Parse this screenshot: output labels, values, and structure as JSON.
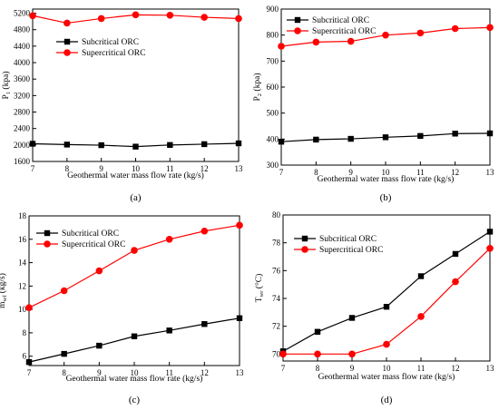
{
  "chart_data": [
    {
      "type": "line",
      "panel_label": "(a)",
      "xlabel": "Geothermal water mass flow rate (kg/s)",
      "ylabel": {
        "main": "P",
        "sub": "1",
        "unit": "(kpa)"
      },
      "x": [
        7,
        8,
        9,
        10,
        11,
        12,
        13
      ],
      "xlim": [
        7,
        13
      ],
      "ylim": [
        1600,
        5300
      ],
      "yticks": [
        1600,
        2000,
        2400,
        2800,
        3200,
        3600,
        4000,
        4400,
        4800,
        5200
      ],
      "legend_position": "middle-left",
      "series": [
        {
          "name": "Subcritical ORC",
          "color": "#000000",
          "marker": "square",
          "values": [
            2030,
            2010,
            1995,
            1960,
            2000,
            2020,
            2040
          ]
        },
        {
          "name": "Supercritical ORC",
          "color": "#ff0000",
          "marker": "circle",
          "values": [
            5140,
            4960,
            5070,
            5160,
            5150,
            5100,
            5070
          ]
        }
      ]
    },
    {
      "type": "line",
      "panel_label": "(b)",
      "xlabel": "Geothermal water mass flow rate (kg/s)",
      "ylabel": {
        "main": "P",
        "sub": "2",
        "unit": "(kpa)"
      },
      "x": [
        7,
        8,
        9,
        10,
        11,
        12,
        13
      ],
      "xlim": [
        7,
        13
      ],
      "ylim": [
        300,
        900
      ],
      "yticks": [
        300,
        400,
        500,
        600,
        700,
        800,
        900
      ],
      "legend_position": "top-left",
      "series": [
        {
          "name": "Subcritical ORC",
          "color": "#000000",
          "marker": "square",
          "values": [
            390,
            398,
            401,
            407,
            412,
            421,
            422
          ]
        },
        {
          "name": "Supercritical ORC",
          "color": "#ff0000",
          "marker": "circle",
          "values": [
            757,
            773,
            776,
            800,
            808,
            825,
            829
          ]
        }
      ]
    },
    {
      "type": "line",
      "panel_label": "(c)",
      "xlabel": "Geothermal water mass flow rate (kg/s)",
      "ylabel": {
        "main": "m",
        "sub": "wf",
        "unit": "(kg/s)"
      },
      "x": [
        7,
        8,
        9,
        10,
        11,
        12,
        13
      ],
      "xlim": [
        7,
        13
      ],
      "ylim": [
        5.2,
        18
      ],
      "yticks": [
        6,
        8,
        10,
        12,
        14,
        16,
        18
      ],
      "legend_position": "top-left",
      "series": [
        {
          "name": "Subcritical ORC",
          "color": "#000000",
          "marker": "square",
          "values": [
            5.5,
            6.2,
            6.9,
            7.7,
            8.2,
            8.75,
            9.25
          ]
        },
        {
          "name": "Supercritical ORC",
          "color": "#ff0000",
          "marker": "circle",
          "values": [
            10.15,
            11.6,
            13.3,
            15.05,
            16.0,
            16.7,
            17.2
          ]
        }
      ]
    },
    {
      "type": "line",
      "panel_label": "(d)",
      "xlabel": "Geothermal water mass flow rate (kg/s)",
      "ylabel": {
        "main": "T",
        "sub": "wr",
        "unit": "(°C)"
      },
      "x": [
        7,
        8,
        9,
        10,
        11,
        12,
        13
      ],
      "xlim": [
        7,
        13
      ],
      "ylim": [
        69.5,
        80
      ],
      "yticks": [
        70,
        72,
        74,
        76,
        78,
        80
      ],
      "legend_position": "top-left",
      "series": [
        {
          "name": "Subcritical ORC",
          "color": "#000000",
          "marker": "square",
          "values": [
            70.2,
            71.6,
            72.6,
            73.4,
            75.6,
            77.2,
            78.8
          ]
        },
        {
          "name": "Supercritical ORC",
          "color": "#ff0000",
          "marker": "circle",
          "values": [
            70.0,
            70.0,
            70.0,
            70.7,
            72.7,
            75.2,
            77.6
          ]
        }
      ]
    }
  ]
}
